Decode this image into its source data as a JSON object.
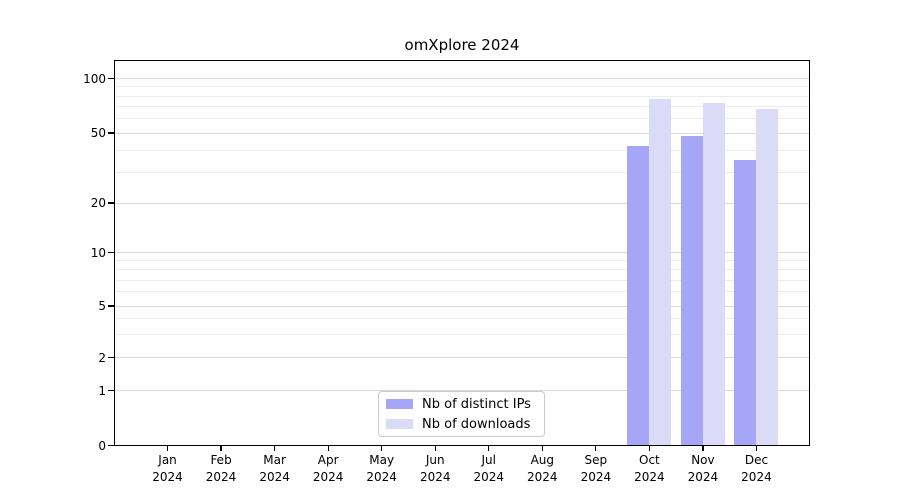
{
  "chart_data": {
    "type": "bar",
    "title": "omXplore 2024",
    "x_axis": {
      "categories": [
        {
          "month": "Jan",
          "year": "2024"
        },
        {
          "month": "Feb",
          "year": "2024"
        },
        {
          "month": "Mar",
          "year": "2024"
        },
        {
          "month": "Apr",
          "year": "2024"
        },
        {
          "month": "May",
          "year": "2024"
        },
        {
          "month": "Jun",
          "year": "2024"
        },
        {
          "month": "Jul",
          "year": "2024"
        },
        {
          "month": "Aug",
          "year": "2024"
        },
        {
          "month": "Sep",
          "year": "2024"
        },
        {
          "month": "Oct",
          "year": "2024"
        },
        {
          "month": "Nov",
          "year": "2024"
        },
        {
          "month": "Dec",
          "year": "2024"
        }
      ]
    },
    "y_axis": {
      "scale": "log-like with 0 baseline",
      "ticks": [
        0,
        1,
        2,
        5,
        10,
        20,
        50,
        100
      ],
      "major_gridlines": [
        1,
        2,
        5,
        10,
        20,
        50,
        100
      ],
      "minor_gridlines": [
        3,
        4,
        6,
        7,
        8,
        9,
        30,
        40,
        60,
        70,
        80,
        90
      ],
      "range": [
        0,
        128
      ]
    },
    "series": [
      {
        "name": "Nb of distinct IPs",
        "color": "#a6a6f7",
        "values": [
          null,
          null,
          null,
          null,
          null,
          null,
          null,
          null,
          null,
          42,
          48,
          35
        ]
      },
      {
        "name": "Nb of downloads",
        "color": "#dbdbf7",
        "values": [
          null,
          null,
          null,
          null,
          null,
          null,
          null,
          null,
          null,
          77,
          73,
          68
        ]
      }
    ],
    "legend_position": "lower center",
    "grid": true
  },
  "colors": {
    "grid_major": "#d9d9d9",
    "grid_minor": "#ececec",
    "spine": "#000000",
    "legend_border": "#cccccc",
    "background": "#ffffff",
    "text": "#000000"
  }
}
